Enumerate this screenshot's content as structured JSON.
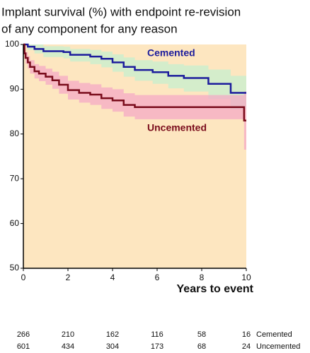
{
  "chart_data": {
    "type": "step",
    "title": [
      "Implant survival (%) with endpoint re-revision",
      "of any component for any reason"
    ],
    "x_label": "Years to event",
    "xlim": [
      0,
      10
    ],
    "ylim": [
      50,
      100
    ],
    "xticks": [
      0,
      2,
      4,
      6,
      8,
      10
    ],
    "yticks": [
      50,
      60,
      70,
      80,
      90,
      100
    ],
    "background": "#fde6c0",
    "series": [
      {
        "name": "Cemented",
        "color": "#1c1c9c",
        "band_color": "#c6efcf",
        "x": [
          0,
          0.2,
          0.5,
          0.9,
          1.8,
          2.1,
          3,
          3.5,
          4,
          4.5,
          5,
          5.8,
          6.5,
          7.2,
          8.3,
          9.3,
          10
        ],
        "values": [
          100,
          99.5,
          99,
          98.5,
          98.3,
          97.7,
          97.3,
          96.8,
          96,
          95,
          94.3,
          93.8,
          93,
          92.5,
          91.2,
          89.2,
          89.2
        ],
        "lower": [
          100,
          98.8,
          98,
          97.2,
          96.9,
          96.2,
          95.6,
          94.9,
          93.9,
          92.8,
          91.9,
          91.2,
          90.2,
          89.5,
          87.8,
          85.5,
          85.5
        ],
        "upper": [
          100,
          100,
          100,
          99.6,
          99.5,
          99,
          98.8,
          98.4,
          97.8,
          97.1,
          96.5,
          96.2,
          95.6,
          95.3,
          94.4,
          93,
          93
        ]
      },
      {
        "name": "Uncemented",
        "color": "#7a0c1c",
        "band_color": "#f4a9c6",
        "x": [
          0,
          0.05,
          0.1,
          0.2,
          0.3,
          0.5,
          0.7,
          1,
          1.3,
          1.6,
          2,
          2.5,
          3,
          3.5,
          4,
          4.5,
          5,
          9.9,
          10
        ],
        "values": [
          100,
          98,
          97,
          96,
          95,
          94,
          93.5,
          92.8,
          92,
          91,
          89.8,
          89.2,
          88.8,
          88,
          87.5,
          86.5,
          86,
          83,
          83
        ],
        "lower": [
          100,
          96.8,
          95.7,
          94.6,
          93.5,
          92.4,
          91.8,
          91,
          90.1,
          89,
          87.7,
          87,
          86.5,
          85.6,
          85,
          83.9,
          83.3,
          76.5,
          76.5
        ],
        "upper": [
          100,
          99.2,
          98.3,
          97.4,
          96.5,
          95.6,
          95.2,
          94.6,
          93.9,
          93,
          91.9,
          91.4,
          91.1,
          90.4,
          90,
          89.1,
          88.7,
          89.5,
          89.5
        ]
      }
    ],
    "at_risk": [
      {
        "name": "Cemented",
        "values": [
          266,
          210,
          162,
          116,
          58,
          16
        ]
      },
      {
        "name": "Uncemented",
        "values": [
          601,
          434,
          304,
          173,
          68,
          24
        ]
      }
    ]
  }
}
